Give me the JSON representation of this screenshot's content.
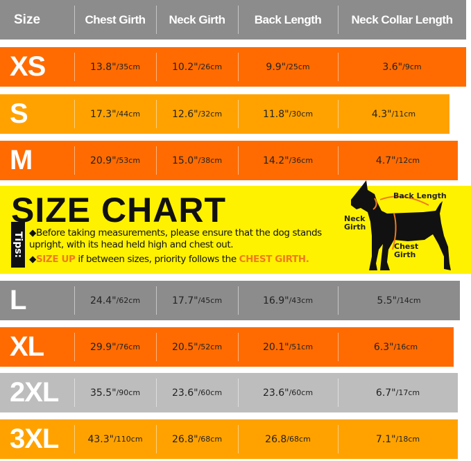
{
  "header": {
    "columns": [
      "Size",
      "Chest Girth",
      "Neck Girth",
      "Back Length",
      "Neck Collar Length"
    ]
  },
  "colors": {
    "header": "#8c8c8c",
    "orange": "#ff6b00",
    "amber": "#ffa200",
    "grey": "#8c8c8c",
    "light_grey": "#bdbdbd",
    "yellow": "#fff200",
    "highlight": "#f07b1a"
  },
  "rows": [
    {
      "size": "XS",
      "chest": [
        "13.8\"",
        "/35cm"
      ],
      "neck": [
        "10.2\"",
        "/26cm"
      ],
      "back": [
        "9.9\"",
        "/25cm"
      ],
      "collar": [
        "3.6\"",
        "/9cm"
      ]
    },
    {
      "size": "S",
      "chest": [
        "17.3\"",
        "/44cm"
      ],
      "neck": [
        "12.6\"",
        "/32cm"
      ],
      "back": [
        "11.8\"",
        "/30cm"
      ],
      "collar": [
        "4.3\"",
        "/11cm"
      ]
    },
    {
      "size": "M",
      "chest": [
        "20.9\"",
        "/53cm"
      ],
      "neck": [
        "15.0\"",
        "/38cm"
      ],
      "back": [
        "14.2\"",
        "/36cm"
      ],
      "collar": [
        "4.7\"",
        "/12cm"
      ]
    },
    {
      "size": "L",
      "chest": [
        "24.4\"",
        "/62cm"
      ],
      "neck": [
        "17.7\"",
        "/45cm"
      ],
      "back": [
        "16.9\"",
        "/43cm"
      ],
      "collar": [
        "5.5\"",
        "/14cm"
      ]
    },
    {
      "size": "XL",
      "chest": [
        "29.9\"",
        "/76cm"
      ],
      "neck": [
        "20.5\"",
        "/52cm"
      ],
      "back": [
        "20.1\"",
        "/51cm"
      ],
      "collar": [
        "6.3\"",
        "/16cm"
      ]
    },
    {
      "size": "2XL",
      "chest": [
        "35.5\"",
        "/90cm"
      ],
      "neck": [
        "23.6\"",
        "/60cm"
      ],
      "back": [
        "23.6\"",
        "/60cm"
      ],
      "collar": [
        "6.7\"",
        "/17cm"
      ]
    },
    {
      "size": "3XL",
      "chest": [
        "43.3\"",
        "/110cm"
      ],
      "neck": [
        "26.8\"",
        "/68cm"
      ],
      "back": [
        "26.8",
        "/68cm"
      ],
      "collar": [
        "7.1\"",
        "/18cm"
      ]
    }
  ],
  "banner": {
    "title": "SIZE CHART",
    "tips_label": "Tips:",
    "tip1": "Before taking measurements, please ensure that the dog stands upright, with its head held high and chest out.",
    "tip2_hl1": "SIZE UP",
    "tip2_mid": " if between sizes, priority follows the ",
    "tip2_hl2": "CHEST GIRTH",
    "tip2_end": ".",
    "diagram_labels": {
      "back": "Back Length",
      "neck": "Neck Girth",
      "chest": "Chest Girth"
    }
  }
}
